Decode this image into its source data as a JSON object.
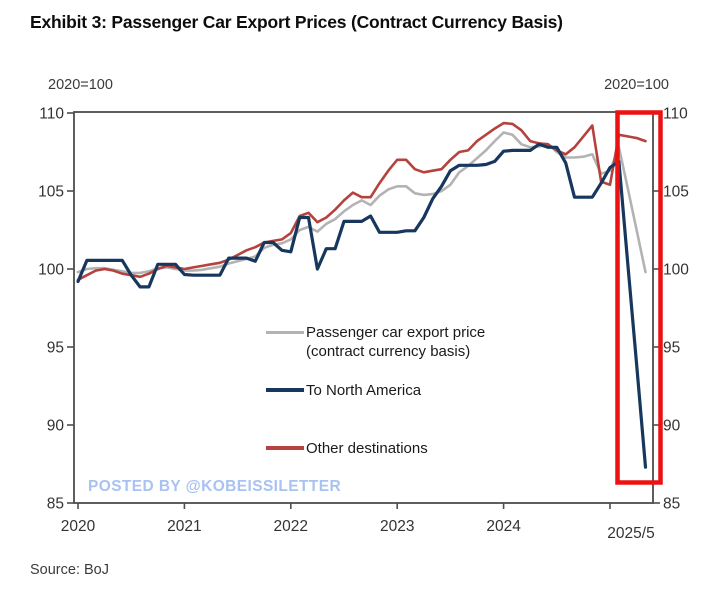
{
  "title": "Exhibit 3: Passenger Car Export Prices (Contract Currency Basis)",
  "axis_note_left": "2020=100",
  "axis_note_right": "2020=100",
  "watermark": "POSTED BY @KOBEISSILETTER",
  "source": "Source: BoJ",
  "chart_data": {
    "type": "line",
    "title": "Exhibit 3: Passenger Car Export Prices (Contract Currency Basis)",
    "index_note": "2020=100",
    "frequency": "monthly",
    "x_start": "2020-01",
    "x_end": "2025-05",
    "x_tick_labels": [
      "2020",
      "2021",
      "2022",
      "2023",
      "2024",
      "2025/5"
    ],
    "y_ticks": [
      85,
      90,
      95,
      100,
      105,
      110
    ],
    "ylim": [
      85,
      110
    ],
    "grid": false,
    "legend_position": "center",
    "colors": {
      "axis": "#4d4d4d",
      "highlight_box": "#ea1212"
    },
    "series": [
      {
        "name": "Passenger car export price (contract currency basis)",
        "color": "#b3b3b3",
        "values": [
          99.8,
          100.0,
          100.05,
          100.05,
          99.95,
          99.85,
          99.75,
          99.75,
          99.85,
          100.05,
          100.1,
          100.0,
          99.9,
          99.9,
          99.95,
          100.05,
          100.15,
          100.35,
          100.5,
          100.65,
          100.8,
          101.35,
          101.55,
          101.65,
          101.9,
          102.5,
          102.7,
          102.4,
          102.9,
          103.2,
          103.7,
          104.1,
          104.4,
          104.1,
          104.7,
          105.1,
          105.3,
          105.3,
          104.85,
          104.75,
          104.8,
          105.0,
          105.4,
          106.2,
          106.6,
          107.1,
          107.6,
          108.2,
          108.75,
          108.6,
          108.0,
          107.8,
          107.85,
          108.0,
          107.5,
          107.15,
          107.15,
          107.2,
          107.35,
          106.1,
          106.3,
          107.8,
          105.2,
          102.5,
          99.8
        ]
      },
      {
        "name": "To North America",
        "color": "#17375e",
        "values": [
          99.2,
          100.55,
          100.55,
          100.55,
          100.55,
          100.55,
          99.6,
          98.85,
          98.85,
          100.3,
          100.3,
          100.3,
          99.65,
          99.6,
          99.6,
          99.6,
          99.6,
          100.7,
          100.7,
          100.7,
          100.5,
          101.7,
          101.7,
          101.2,
          101.1,
          103.3,
          103.3,
          100.0,
          101.3,
          101.3,
          103.05,
          103.05,
          103.05,
          103.4,
          102.35,
          102.35,
          102.35,
          102.45,
          102.45,
          103.3,
          104.5,
          105.3,
          106.3,
          106.65,
          106.65,
          106.65,
          106.7,
          106.9,
          107.55,
          107.6,
          107.6,
          107.6,
          108.0,
          107.8,
          107.8,
          106.8,
          104.6,
          104.6,
          104.6,
          105.5,
          106.5,
          106.9,
          100.4,
          93.9,
          87.3
        ]
      },
      {
        "name": "Other destinations",
        "color": "#b5423c",
        "values": [
          99.3,
          99.6,
          99.9,
          100.0,
          99.9,
          99.7,
          99.6,
          99.5,
          99.7,
          100.0,
          100.2,
          100.1,
          100.0,
          100.1,
          100.2,
          100.3,
          100.4,
          100.6,
          100.9,
          101.2,
          101.4,
          101.7,
          101.8,
          101.9,
          102.3,
          103.4,
          103.6,
          103.0,
          103.3,
          103.8,
          104.4,
          104.9,
          104.6,
          104.6,
          105.5,
          106.3,
          107.0,
          107.0,
          106.4,
          106.2,
          106.3,
          106.4,
          107.0,
          107.5,
          107.6,
          108.2,
          108.6,
          109.0,
          109.35,
          109.3,
          108.9,
          108.2,
          108.05,
          108.0,
          107.6,
          107.35,
          107.8,
          108.5,
          109.2,
          105.6,
          105.4,
          108.6,
          108.5,
          108.4,
          108.2
        ]
      }
    ],
    "legend": [
      {
        "series_index": 0,
        "line1": "Passenger car export price",
        "line2": "(contract currency basis)"
      },
      {
        "series_index": 1,
        "line1": "To North America",
        "line2": ""
      },
      {
        "series_index": 2,
        "line1": "Other destinations",
        "line2": ""
      }
    ],
    "annotations": {
      "highlight_box_range": "2025/2 - 2025/5"
    }
  }
}
